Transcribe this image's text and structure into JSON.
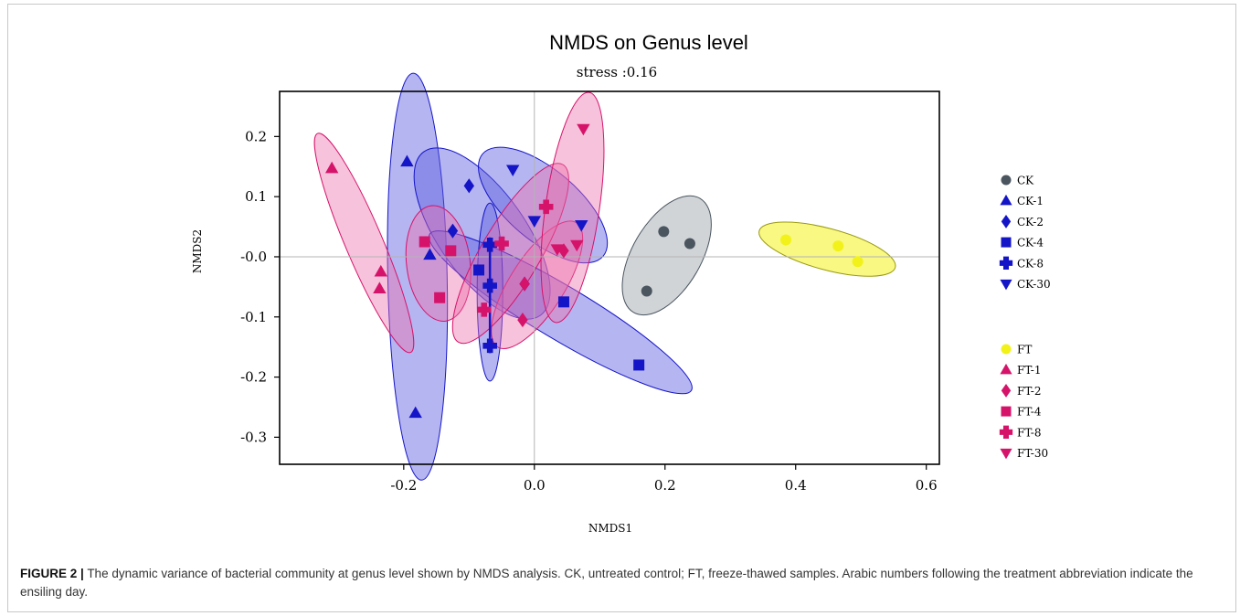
{
  "chart_data": {
    "type": "scatter",
    "title": "NMDS on Genus level",
    "subtitle": "stress :0.16",
    "xlabel": "NMDS1",
    "ylabel": "NMDS2",
    "xlim": [
      -0.39,
      0.62
    ],
    "ylim": [
      -0.345,
      0.275
    ],
    "x_ticks": [
      -0.2,
      0.0,
      0.2,
      0.4,
      0.6
    ],
    "x_tick_labels": [
      "-0.2",
      "0.0",
      "0.2",
      "0.4",
      "0.6"
    ],
    "y_ticks": [
      0.2,
      0.1,
      0.0,
      -0.1,
      -0.2,
      -0.3
    ],
    "y_tick_labels": [
      "0.2",
      "0.1",
      "-0.0",
      "-0.1",
      "-0.2",
      "-0.3"
    ],
    "grid": false,
    "reference_lines": {
      "x": 0.0,
      "y": 0.0
    },
    "legend_position": "right",
    "colors": {
      "ck": "#1515c8",
      "ck0": "#4a5560",
      "ft": "#d6136a",
      "ft0": "#f2f21a",
      "ck_fill": "rgba(90,90,225,0.45)",
      "ft_fill": "rgba(236,110,170,0.42)"
    },
    "series": [
      {
        "name": "CK",
        "marker": "circle",
        "color": "#4a5560",
        "fill": "rgba(90,100,110,0.28)",
        "points": [
          [
            0.198,
            0.042
          ],
          [
            0.238,
            0.022
          ],
          [
            0.172,
            -0.057
          ]
        ]
      },
      {
        "name": "CK-1",
        "marker": "triangle-up",
        "color": "#1515c8",
        "fill": "rgba(90,90,225,0.45)",
        "points": [
          [
            -0.195,
            0.158
          ],
          [
            -0.16,
            0.003
          ],
          [
            -0.182,
            -0.26
          ]
        ]
      },
      {
        "name": "CK-2",
        "marker": "diamond",
        "color": "#1515c8",
        "fill": "rgba(90,90,225,0.45)",
        "points": [
          [
            -0.1,
            0.118
          ],
          [
            -0.125,
            0.043
          ],
          [
            -0.015,
            -0.045
          ]
        ]
      },
      {
        "name": "CK-4",
        "marker": "square",
        "color": "#1515c8",
        "fill": "rgba(90,90,225,0.45)",
        "points": [
          [
            -0.085,
            -0.022
          ],
          [
            0.045,
            -0.075
          ],
          [
            0.16,
            -0.18
          ]
        ]
      },
      {
        "name": "CK-8",
        "marker": "plus",
        "color": "#1515c8",
        "fill": "rgba(90,90,225,0.45)",
        "points": [
          [
            -0.068,
            0.02
          ],
          [
            -0.068,
            -0.048
          ],
          [
            -0.068,
            -0.148
          ]
        ]
      },
      {
        "name": "CK-30",
        "marker": "triangle-down",
        "color": "#1515c8",
        "fill": "rgba(90,90,225,0.45)",
        "points": [
          [
            -0.033,
            0.145
          ],
          [
            0.0,
            0.06
          ],
          [
            0.072,
            0.053
          ]
        ]
      },
      {
        "name": "FT",
        "marker": "circle",
        "color": "#f2f21a",
        "fill": "rgba(242,242,30,0.55)",
        "points": [
          [
            0.385,
            0.028
          ],
          [
            0.465,
            0.018
          ],
          [
            0.495,
            -0.008
          ]
        ]
      },
      {
        "name": "FT-1",
        "marker": "triangle-up",
        "color": "#d6136a",
        "fill": "rgba(236,110,170,0.42)",
        "points": [
          [
            -0.31,
            0.147
          ],
          [
            -0.235,
            -0.025
          ],
          [
            -0.237,
            -0.053
          ]
        ]
      },
      {
        "name": "FT-2",
        "marker": "diamond",
        "color": "#d6136a",
        "fill": "rgba(236,110,170,0.42)",
        "points": [
          [
            -0.015,
            -0.045
          ],
          [
            -0.018,
            -0.105
          ],
          [
            0.045,
            0.01
          ]
        ]
      },
      {
        "name": "FT-4",
        "marker": "square",
        "color": "#d6136a",
        "fill": "rgba(236,110,170,0.42)",
        "points": [
          [
            -0.168,
            0.025
          ],
          [
            -0.128,
            0.01
          ],
          [
            -0.145,
            -0.068
          ]
        ]
      },
      {
        "name": "FT-8",
        "marker": "plus",
        "color": "#d6136a",
        "fill": "rgba(236,110,170,0.42)",
        "points": [
          [
            0.018,
            0.083
          ],
          [
            -0.05,
            0.022
          ],
          [
            -0.077,
            -0.088
          ]
        ]
      },
      {
        "name": "FT-30",
        "marker": "triangle-down",
        "color": "#d6136a",
        "fill": "rgba(236,110,170,0.42)",
        "points": [
          [
            0.075,
            0.213
          ],
          [
            0.065,
            0.02
          ],
          [
            0.035,
            0.013
          ]
        ]
      }
    ],
    "legend_groups": [
      [
        "CK",
        "CK-1",
        "CK-2",
        "CK-4",
        "CK-8",
        "CK-30"
      ],
      [
        "FT",
        "FT-1",
        "FT-2",
        "FT-4",
        "FT-8",
        "FT-30"
      ]
    ]
  },
  "caption": {
    "label": "FIGURE 2 |",
    "text": "The dynamic variance of bacterial community at genus level shown by NMDS analysis. CK, untreated control; FT, freeze-thawed samples. Arabic numbers following the treatment abbreviation indicate the ensiling day."
  }
}
